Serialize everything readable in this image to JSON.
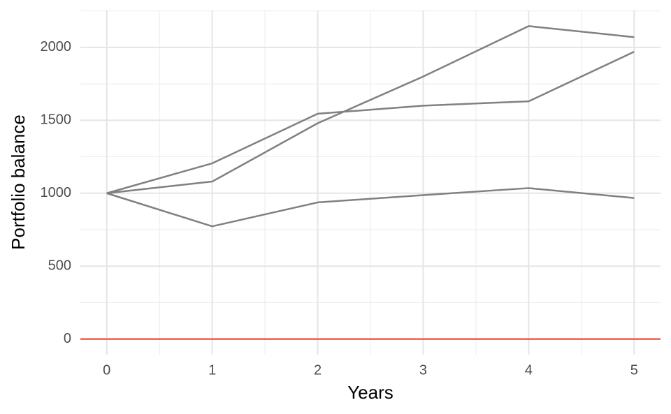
{
  "chart_data": {
    "type": "line",
    "x_label": "Years",
    "y_label": "Portfolio balance",
    "x": [
      0,
      1,
      2,
      3,
      4,
      5
    ],
    "series": [
      {
        "color": "#808080",
        "values": [
          1000,
          1080,
          1480,
          1800,
          2146,
          2070
        ]
      },
      {
        "color": "#808080",
        "values": [
          1000,
          1205,
          1545,
          1600,
          1630,
          1970
        ]
      },
      {
        "color": "#808080",
        "values": [
          1000,
          773,
          937,
          987,
          1035,
          967
        ]
      }
    ],
    "hline": {
      "value": 0,
      "color": "#e8604c"
    },
    "xlim": [
      -0.25,
      5.25
    ],
    "xticks": [
      0,
      1,
      2,
      3,
      4,
      5
    ],
    "ylim": [
      -107,
      2253
    ],
    "yticks": [
      0,
      500,
      1000,
      1500,
      2000
    ],
    "grid": true,
    "minor_grid": true
  }
}
